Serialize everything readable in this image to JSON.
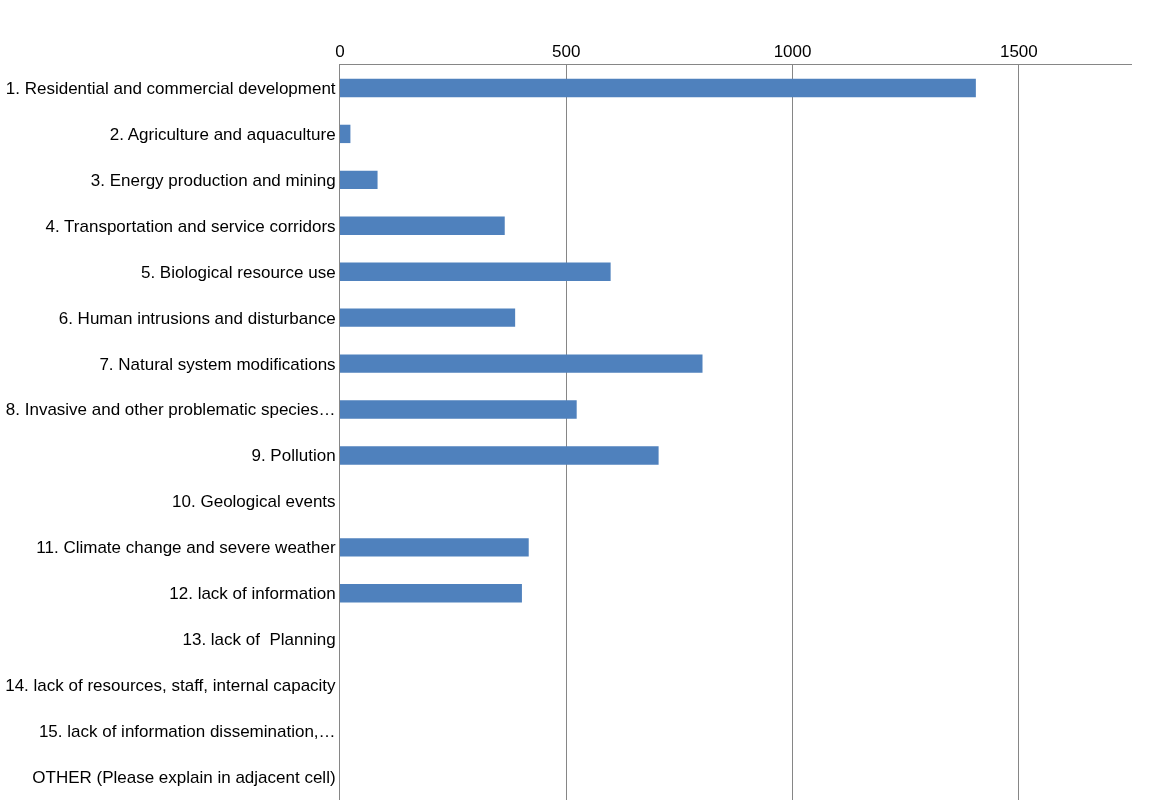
{
  "chart_data": {
    "type": "bar",
    "orientation": "horizontal",
    "categories": [
      "1. Residential and commercial development",
      "2. Agriculture and aquaculture",
      "3. Energy production and mining",
      "4. Transportation and service corridors",
      "5. Biological resource use",
      "6. Human intrusions and disturbance",
      "7. Natural system modifications",
      "8. Invasive and other problematic species…",
      "9. Pollution",
      "10. Geological events",
      "11. Climate change and severe weather",
      "12. lack of information",
      "13. lack of  Planning",
      "14. lack of resources, staff, internal capacity",
      "15. lack of information dissemination,…",
      "OTHER (Please explain in adjacent cell)"
    ],
    "values": [
      1405,
      23,
      83,
      364,
      598,
      387,
      801,
      523,
      704,
      0,
      417,
      402,
      0,
      0,
      0,
      0
    ],
    "color": "#4f81bd",
    "xlim": [
      0,
      1750
    ],
    "xticks": [
      0,
      500,
      1000,
      1500
    ],
    "grid": "x"
  }
}
